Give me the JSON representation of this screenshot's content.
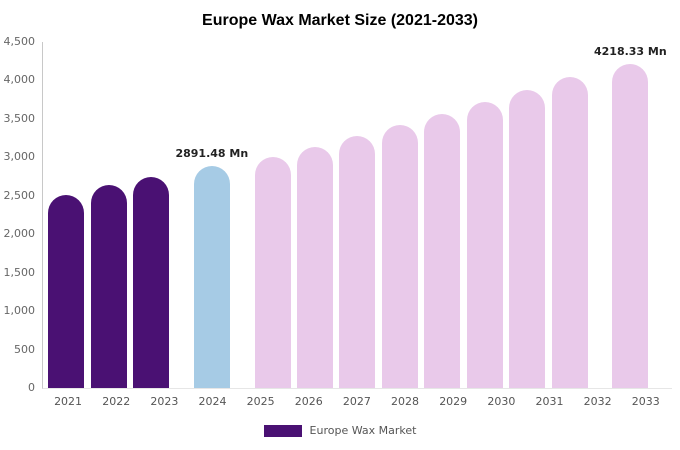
{
  "title": "Europe Wax Market Size (2021-2033)",
  "legend": {
    "label": "Europe Wax Market",
    "swatch_color": "#4a1173"
  },
  "chart_data": {
    "type": "bar",
    "title": "Europe Wax Market Size (2021-2033)",
    "categories": [
      "2021",
      "2022",
      "2023",
      "2024",
      "2025",
      "2026",
      "2027",
      "2028",
      "2029",
      "2030",
      "2031",
      "2032",
      "2033"
    ],
    "values": [
      2515,
      2645,
      2750,
      2891.48,
      3010,
      3140,
      3275,
      3415,
      3560,
      3715,
      3875,
      4040,
      4218.33
    ],
    "unit": "Mn",
    "ylim": [
      0,
      4500
    ],
    "ytick_interval": 500,
    "ytick_labels": [
      "0",
      "500",
      "1,000",
      "1,500",
      "2,000",
      "2,500",
      "3,000",
      "3,500",
      "4,000",
      "4,500"
    ],
    "bar_colors": [
      "#4a1173",
      "#4a1173",
      "#4a1173",
      "#a6cbe5",
      "#e9c9ea",
      "#e9c9ea",
      "#e9c9ea",
      "#e9c9ea",
      "#e9c9ea",
      "#e9c9ea",
      "#e9c9ea",
      "#e9c9ea",
      "#e9c9ea"
    ],
    "annotations": [
      {
        "category": "2024",
        "text": "2891.48 Mn"
      },
      {
        "category": "2033",
        "text": "4218.33 Mn"
      }
    ],
    "grid": false,
    "legend_position": "bottom"
  }
}
